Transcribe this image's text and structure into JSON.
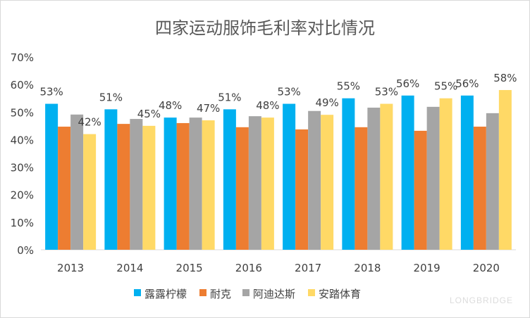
{
  "chart_data": {
    "type": "bar",
    "title": "四家运动服饰毛利率对比情况",
    "categories": [
      "2013",
      "2014",
      "2015",
      "2016",
      "2017",
      "2018",
      "2019",
      "2020"
    ],
    "ylim": [
      0,
      70
    ],
    "yticks": [
      "0%",
      "10%",
      "20%",
      "30%",
      "40%",
      "50%",
      "60%",
      "70%"
    ],
    "grid": false,
    "legend_position": "bottom",
    "series": [
      {
        "name": "露露柠檬",
        "color": "#00B0F0",
        "values": [
          53,
          51,
          48,
          51,
          53,
          55,
          56,
          56
        ],
        "labels": [
          "53%",
          "51%",
          "48%",
          "51%",
          "53%",
          "55%",
          "56%",
          "56%"
        ]
      },
      {
        "name": "耐克",
        "color": "#ED7D31",
        "values": [
          44.7,
          45.7,
          46,
          44.5,
          43.7,
          44.5,
          43.2,
          44.7
        ]
      },
      {
        "name": "阿迪达斯",
        "color": "#A5A5A5",
        "values": [
          49.1,
          47.5,
          48,
          48.5,
          50.4,
          51.6,
          51.9,
          49.6
        ]
      },
      {
        "name": "安踏体育",
        "color": "#FFD966",
        "values": [
          42,
          45,
          47,
          48,
          49,
          53,
          55,
          58
        ],
        "labels": [
          "42%",
          "45%",
          "47%",
          "48%",
          "49%",
          "53%",
          "55%",
          "58%"
        ]
      }
    ]
  },
  "watermark": "LONGBRIDGE"
}
